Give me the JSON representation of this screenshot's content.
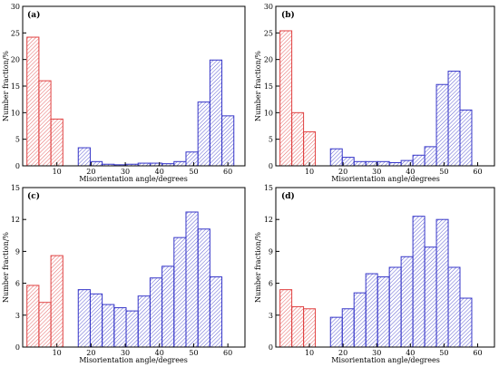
{
  "chart_data": [
    {
      "type": "bar",
      "panel_label": "(a)",
      "xlabel": "Misorientation angle/degrees",
      "ylabel": "Number fraction/%",
      "xlim": [
        0,
        65
      ],
      "ylim": [
        0,
        30
      ],
      "xticks": [
        10,
        20,
        30,
        40,
        50,
        60
      ],
      "yticks": [
        0,
        5,
        10,
        15,
        20,
        25,
        30
      ],
      "bin_width": 3.5,
      "series": [
        {
          "color": "#e04040",
          "x": [
            3,
            6.5,
            10
          ],
          "values": [
            24.2,
            16.0,
            8.8
          ]
        },
        {
          "color": "#3535c8",
          "x": [
            18,
            21.5,
            25,
            28.5,
            32,
            35.5,
            39,
            42.5,
            46,
            49.5,
            53,
            56.5,
            60
          ],
          "values": [
            3.4,
            0.8,
            0.3,
            0.2,
            0.3,
            0.5,
            0.5,
            0.4,
            0.8,
            2.6,
            12.0,
            19.9,
            9.4
          ]
        }
      ]
    },
    {
      "type": "bar",
      "panel_label": "(b)",
      "xlabel": "Misorientation angle/degrees",
      "ylabel": "Number fraction/%",
      "xlim": [
        0,
        65
      ],
      "ylim": [
        0,
        30
      ],
      "xticks": [
        10,
        20,
        30,
        40,
        50,
        60
      ],
      "yticks": [
        0,
        5,
        10,
        15,
        20,
        25,
        30
      ],
      "bin_width": 3.5,
      "series": [
        {
          "color": "#e04040",
          "x": [
            3,
            6.5,
            10
          ],
          "values": [
            25.4,
            10.0,
            6.4
          ]
        },
        {
          "color": "#3535c8",
          "x": [
            18,
            21.5,
            25,
            28.5,
            32,
            35.5,
            39,
            42.5,
            46,
            49.5,
            53,
            56.5,
            60
          ],
          "values": [
            3.2,
            1.6,
            0.8,
            0.8,
            0.8,
            0.6,
            1.0,
            2.0,
            3.6,
            15.3,
            17.8,
            10.5,
            0
          ]
        }
      ]
    },
    {
      "type": "bar",
      "panel_label": "(c)",
      "xlabel": "Misorientation angle/degrees",
      "ylabel": "Number fraction/%",
      "xlim": [
        0,
        65
      ],
      "ylim": [
        0,
        15
      ],
      "xticks": [
        10,
        20,
        30,
        40,
        50,
        60
      ],
      "yticks": [
        0,
        3,
        6,
        9,
        12,
        15
      ],
      "bin_width": 3.5,
      "series": [
        {
          "color": "#e04040",
          "x": [
            3,
            6.5,
            10
          ],
          "values": [
            5.8,
            4.2,
            8.6
          ]
        },
        {
          "color": "#3535c8",
          "x": [
            18,
            21.5,
            25,
            28.5,
            32,
            35.5,
            39,
            42.5,
            46,
            49.5,
            53,
            56.5,
            60
          ],
          "values": [
            5.4,
            5.0,
            4.0,
            3.7,
            3.4,
            4.8,
            6.5,
            7.6,
            10.3,
            12.7,
            11.1,
            6.6,
            0
          ]
        }
      ]
    },
    {
      "type": "bar",
      "panel_label": "(d)",
      "xlabel": "Misorientation angle/degrees",
      "ylabel": "Number fraction/%",
      "xlim": [
        0,
        65
      ],
      "ylim": [
        0,
        15
      ],
      "xticks": [
        10,
        20,
        30,
        40,
        50,
        60
      ],
      "yticks": [
        0,
        3,
        6,
        9,
        12,
        15
      ],
      "bin_width": 3.5,
      "series": [
        {
          "color": "#e04040",
          "x": [
            3,
            6.5,
            10
          ],
          "values": [
            5.4,
            3.8,
            3.6
          ]
        },
        {
          "color": "#3535c8",
          "x": [
            18,
            21.5,
            25,
            28.5,
            32,
            35.5,
            39,
            42.5,
            46,
            49.5,
            53,
            56.5,
            60
          ],
          "values": [
            2.8,
            3.6,
            5.1,
            6.9,
            6.6,
            7.5,
            8.5,
            12.3,
            9.4,
            12.0,
            7.5,
            4.6,
            0
          ]
        }
      ]
    }
  ]
}
